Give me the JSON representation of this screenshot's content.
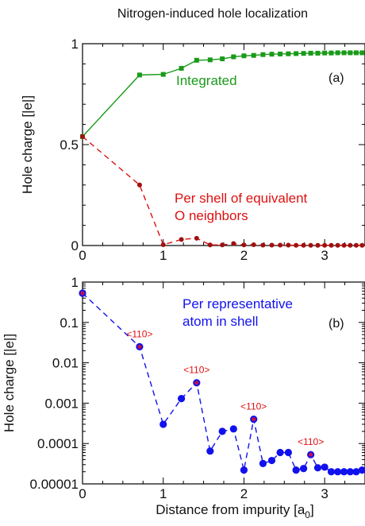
{
  "title": "Nitrogen-induced hole localization",
  "chart_data": [
    {
      "type": "line",
      "panel_label": "(a)",
      "ylabel": "Hole charge [|e|]",
      "xlim": [
        0,
        3.5
      ],
      "ylim": [
        0,
        1
      ],
      "x_ticks": [
        "0",
        "1",
        "2",
        "3"
      ],
      "y_ticks": [
        "0",
        "0.5",
        "1"
      ],
      "grid": false,
      "series": [
        {
          "name": "Integrated",
          "color": "#1a9a1a",
          "marker": "square",
          "line": "solid",
          "x": [
            0,
            0.707,
            1.0,
            1.225,
            1.414,
            1.581,
            1.732,
            1.871,
            2.0,
            2.121,
            2.236,
            2.345,
            2.449,
            2.55,
            2.646,
            2.739,
            2.828,
            2.915,
            3.0,
            3.082,
            3.162,
            3.24,
            3.317,
            3.391,
            3.464
          ],
          "y": [
            0.54,
            0.845,
            0.848,
            0.878,
            0.918,
            0.92,
            0.925,
            0.935,
            0.94,
            0.942,
            0.946,
            0.948,
            0.949,
            0.95,
            0.951,
            0.952,
            0.953,
            0.953,
            0.954,
            0.954,
            0.955,
            0.955,
            0.955,
            0.955,
            0.955
          ]
        },
        {
          "name": "Per shell of equivalent\nO neighbors",
          "color": "#dd1111",
          "marker_color": "#a01010",
          "marker": "circle",
          "line": "dashed",
          "x": [
            0,
            0.707,
            1.0,
            1.225,
            1.414,
            1.581,
            1.732,
            1.871,
            2.0,
            2.121,
            2.236,
            2.345,
            2.449,
            2.55,
            2.646,
            2.739,
            2.828,
            2.915,
            3.0,
            3.082,
            3.162,
            3.24,
            3.317,
            3.391,
            3.464
          ],
          "y": [
            0.54,
            0.3,
            0.004,
            0.03,
            0.036,
            0.003,
            0.003,
            0.01,
            0.003,
            0.004,
            0.002,
            0.002,
            0.002,
            0.002,
            0.001,
            0.001,
            0.001,
            0.001,
            0.001,
            0.001,
            0.001,
            0.001,
            0.001,
            0.001,
            0.001
          ]
        }
      ],
      "annotations": [
        "Integrated",
        "Per shell of equivalent",
        "O neighbors"
      ]
    },
    {
      "type": "line",
      "panel_label": "(b)",
      "ylabel": "Hole charge [|e|]",
      "xlabel": "Distance from impurity [a",
      "xlabel_sub": "0",
      "xlabel_tail": "]",
      "xlim": [
        0,
        3.5
      ],
      "ylim": [
        1e-05,
        1
      ],
      "yscale": "log",
      "x_ticks": [
        "0",
        "1",
        "2",
        "3"
      ],
      "y_ticks": [
        "0.00001",
        "0.0001",
        "0.001",
        "0.01",
        "0.1",
        "1"
      ],
      "grid": false,
      "series": [
        {
          "name": "Per representative\natom in shell",
          "color": "#1111ee",
          "marker": "circle",
          "line": "dashed",
          "x": [
            0,
            0.707,
            1.0,
            1.225,
            1.414,
            1.581,
            1.732,
            1.871,
            2.0,
            2.121,
            2.236,
            2.345,
            2.449,
            2.55,
            2.646,
            2.739,
            2.828,
            2.915,
            3.0,
            3.082,
            3.162,
            3.24,
            3.317,
            3.391,
            3.464
          ],
          "y": [
            0.53,
            0.025,
            0.0003,
            0.0013,
            0.0032,
            6.5e-05,
            0.0002,
            0.00023,
            2.2e-05,
            0.0004,
            3.2e-05,
            3.8e-05,
            6e-05,
            6e-05,
            2.2e-05,
            2.4e-05,
            5.3e-05,
            2.5e-05,
            2.6e-05,
            2e-05,
            2e-05,
            2e-05,
            2e-05,
            2e-05,
            2.2e-05
          ]
        }
      ],
      "highlighted_points": [
        {
          "x": 0,
          "y": 0.53
        },
        {
          "x": 0.707,
          "y": 0.025,
          "label": "<110>"
        },
        {
          "x": 1.414,
          "y": 0.0032,
          "label": "<110>"
        },
        {
          "x": 2.121,
          "y": 0.0004,
          "label": "<110>"
        },
        {
          "x": 2.828,
          "y": 5.3e-05,
          "label": "<110>"
        }
      ],
      "highlight_fill": "#c01048",
      "label_color": "#e01010",
      "annotations": [
        "Per representative",
        "atom in shell"
      ]
    }
  ]
}
